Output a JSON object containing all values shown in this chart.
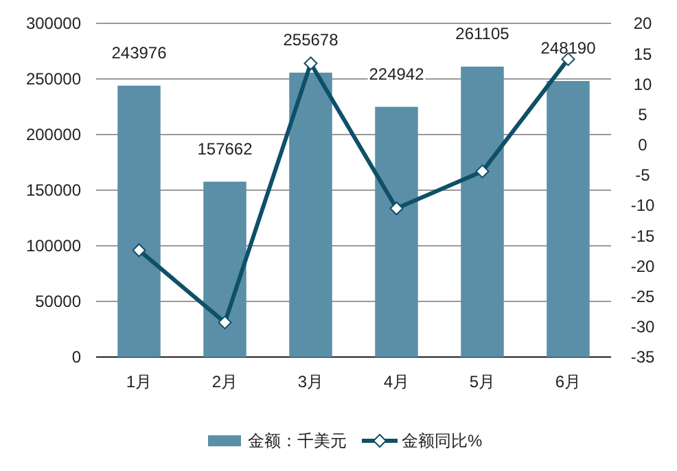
{
  "chart_data": {
    "type": "bar",
    "categories": [
      "1月",
      "2月",
      "3月",
      "4月",
      "5月",
      "6月"
    ],
    "series": [
      {
        "name": "金额：千美元",
        "color": "#5b8fa8",
        "values": [
          243976,
          157662,
          255678,
          224942,
          261105,
          248190
        ],
        "value_labels": [
          "243976",
          "157662",
          "255678",
          "224942",
          "261105",
          "248190"
        ]
      },
      {
        "name": "金额同比%",
        "type": "line",
        "axis": "y2",
        "color": "#0e5068",
        "marker": "diamond",
        "values": [
          -17.4,
          -29.3,
          13.4,
          -10.5,
          -4.4,
          14.1
        ]
      }
    ],
    "ylim": [
      0,
      300000
    ],
    "yticks": [
      0,
      50000,
      100000,
      150000,
      200000,
      250000,
      300000
    ],
    "y2lim": [
      -35,
      20
    ],
    "y2ticks": [
      -35,
      -30,
      -25,
      -20,
      -15,
      -10,
      -5,
      0,
      5,
      10,
      15,
      20
    ],
    "grid": "y",
    "legend": "bottom"
  }
}
